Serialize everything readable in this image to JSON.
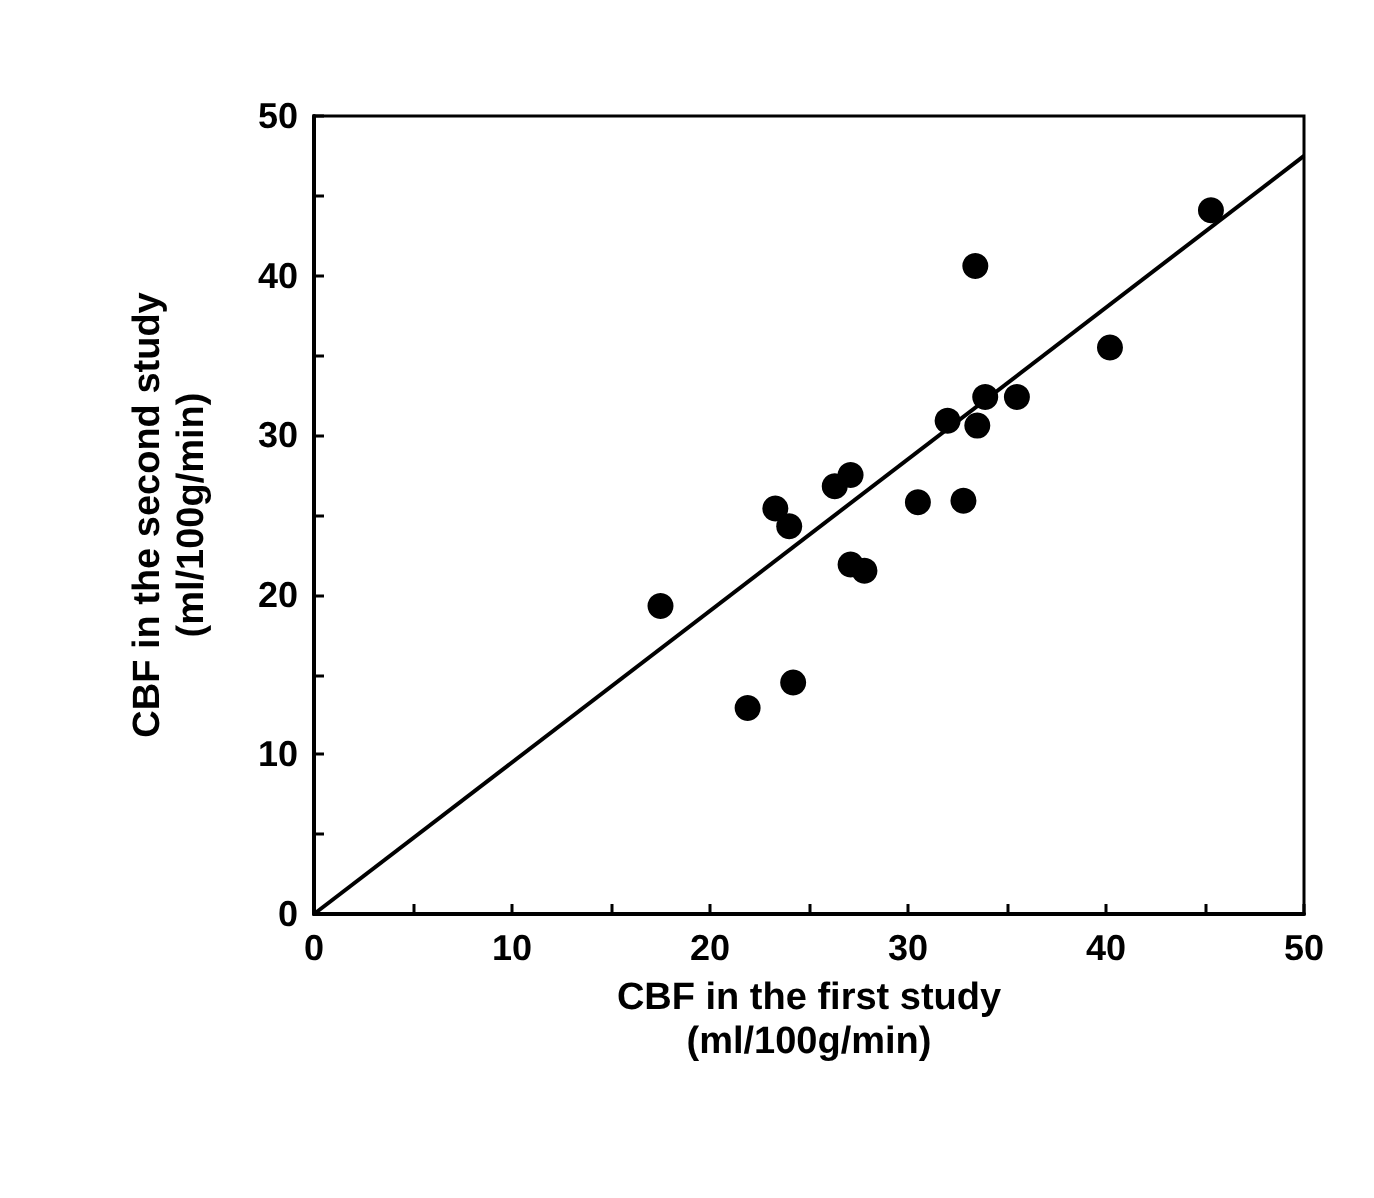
{
  "chart_data": {
    "type": "scatter",
    "xlabel": "CBF in the first study\n(ml/100g/min)",
    "ylabel": "CBF in the second study\n(ml/100g/min)",
    "series": [
      {
        "color": "#000000",
        "x": [
          17.5,
          21.9,
          24.2,
          23.3,
          24.0,
          26.3,
          27.1,
          27.1,
          27.8,
          30.5,
          32.0,
          32.8,
          33.5,
          33.9,
          35.5,
          33.4,
          40.2,
          45.3
        ],
        "values": [
          19.3,
          12.9,
          14.5,
          25.4,
          24.3,
          26.8,
          27.5,
          21.9,
          21.5,
          25.8,
          30.9,
          25.9,
          30.6,
          32.4,
          32.4,
          40.6,
          35.5,
          44.1
        ]
      },
      {
        "type": "line",
        "marker": "none",
        "color": "#000000",
        "x": [
          0,
          50
        ],
        "values": [
          0,
          47.5
        ]
      }
    ],
    "xlim": [
      0,
      50
    ],
    "ylim": [
      0,
      50
    ],
    "xticks": [
      0,
      {
        "value": 5,
        "label": null
      },
      10,
      {
        "value": 15,
        "label": null
      },
      20,
      {
        "value": 25,
        "label": null
      },
      30,
      {
        "value": 35,
        "label": null
      },
      40,
      {
        "value": 45,
        "label": null
      },
      50
    ],
    "yticks": [
      0,
      {
        "value": 5,
        "label": null
      },
      10,
      {
        "value": 15,
        "label": null
      },
      20,
      {
        "value": 25,
        "label": null
      },
      30,
      {
        "value": 35,
        "label": null
      },
      40,
      {
        "value": 45,
        "label": null
      },
      50
    ],
    "grid": false,
    "marker": "circle"
  }
}
